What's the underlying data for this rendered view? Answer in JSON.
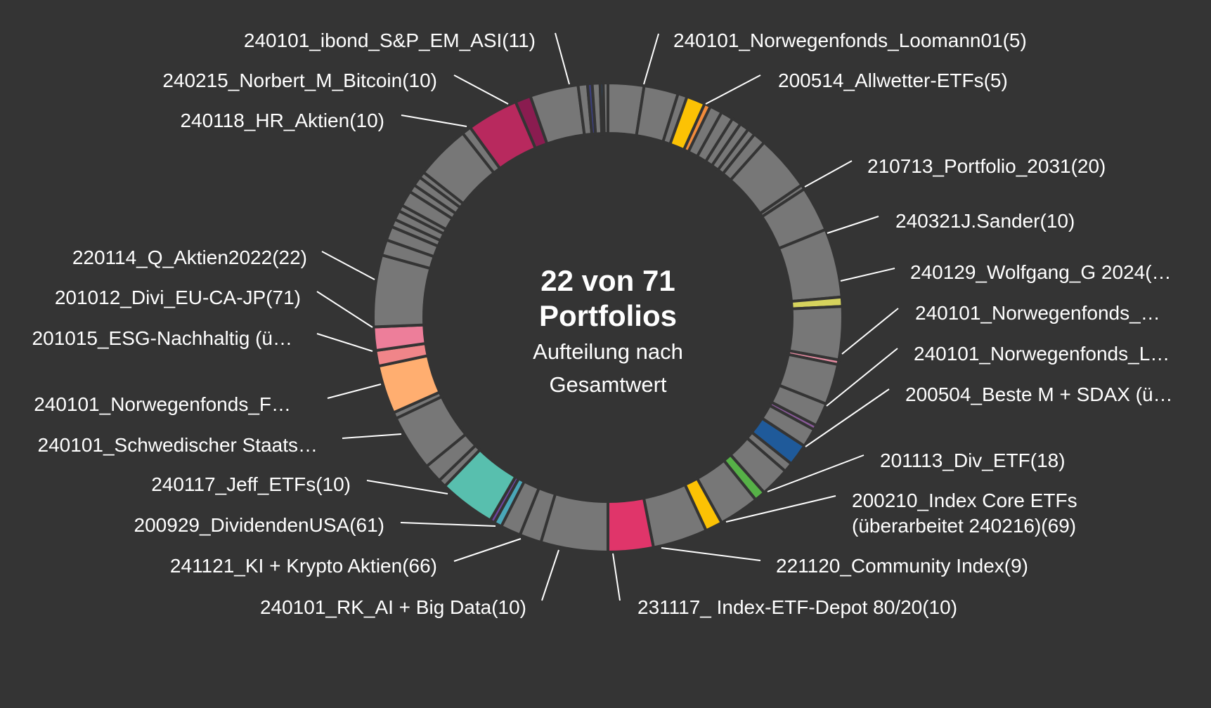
{
  "center": {
    "title_line1": "22 von 71",
    "title_line2": "Portfolios",
    "subtitle_line1": "Aufteilung nach",
    "subtitle_line2": "Gesamtwert"
  },
  "chart_data": {
    "type": "pie",
    "variant": "donut",
    "title": "22 von 71 Portfolios",
    "subtitle": "Aufteilung nach Gesamtwert",
    "other_color": "#777777",
    "labels": [
      {
        "text": "240101_ibond_S&P_EM_ASI(11)"
      },
      {
        "text": "240101_Norwegenfonds_Loomann01(5)"
      },
      {
        "text": "240215_Norbert_M_Bitcoin(10)"
      },
      {
        "text": "200514_Allwetter-ETFs(5)"
      },
      {
        "text": "240118_HR_Aktien(10)"
      },
      {
        "text": "210713_Portfolio_2031(20)"
      },
      {
        "text": "240321J.Sander(10)"
      },
      {
        "text": "220114_Q_Aktien2022(22)"
      },
      {
        "text": "240129_Wolfgang_G 2024(…"
      },
      {
        "text": "201012_Divi_EU-CA-JP(71)"
      },
      {
        "text": "240101_Norwegenfonds_…"
      },
      {
        "text": "201015_ESG-Nachhaltig (ü…"
      },
      {
        "text": "240101_Norwegenfonds_L…"
      },
      {
        "text": "200504_Beste M + SDAX (ü…"
      },
      {
        "text": "240101_Norwegenfonds_F…"
      },
      {
        "text": "240101_Schwedischer Staats…"
      },
      {
        "text": "201113_Div_ETF(18)"
      },
      {
        "text": "240117_Jeff_ETFs(10)"
      },
      {
        "text": "200210_Index Core ETFs",
        "text2": "(überarbeitet 240216)(69)"
      },
      {
        "text": "200929_DividendenUSA(61)"
      },
      {
        "text": "221120_Community Index(9)"
      },
      {
        "text": "241121_KI + Krypto Aktien(66)"
      },
      {
        "text": "240101_RK_AI + Big Data(10)"
      },
      {
        "text": "231117_ Index-ETF-Depot 80/20(10)"
      }
    ],
    "slices": [
      {
        "value": 2.3,
        "color": "#777777"
      },
      {
        "value": 2.2,
        "color": "#777777"
      },
      {
        "value": 0.6,
        "color": "#777777"
      },
      {
        "value": 1.2,
        "color": "#fcc204"
      },
      {
        "value": 0.4,
        "color": "#f28b3b"
      },
      {
        "value": 0.8,
        "color": "#777777"
      },
      {
        "value": 0.8,
        "color": "#777777"
      },
      {
        "value": 0.6,
        "color": "#777777"
      },
      {
        "value": 0.6,
        "color": "#777777"
      },
      {
        "value": 0.5,
        "color": "#777777"
      },
      {
        "value": 0.8,
        "color": "#777777"
      },
      {
        "value": 3.6,
        "color": "#777777"
      },
      {
        "value": 0.3,
        "color": "#777777"
      },
      {
        "value": 2.9,
        "color": "#777777"
      },
      {
        "value": 4.4,
        "color": "#777777"
      },
      {
        "value": 0.6,
        "color": "#d6d35d"
      },
      {
        "value": 3.4,
        "color": "#777777"
      },
      {
        "value": 0.3,
        "color": "#e48aa0"
      },
      {
        "value": 2.6,
        "color": "#777777"
      },
      {
        "value": 1.5,
        "color": "#777777"
      },
      {
        "value": 0.3,
        "color": "#8a5a9a"
      },
      {
        "value": 1.2,
        "color": "#777777"
      },
      {
        "value": 1.4,
        "color": "#1f5a9a"
      },
      {
        "value": 0.6,
        "color": "#777777"
      },
      {
        "value": 1.9,
        "color": "#777777"
      },
      {
        "value": 0.7,
        "color": "#56b147"
      },
      {
        "value": 2.6,
        "color": "#777777"
      },
      {
        "value": 1.1,
        "color": "#fcc204"
      },
      {
        "value": 3.5,
        "color": "#777777"
      },
      {
        "value": 2.9,
        "color": "#e0356a"
      },
      {
        "value": 4.3,
        "color": "#777777"
      },
      {
        "value": 1.4,
        "color": "#777777"
      },
      {
        "value": 1.3,
        "color": "#777777"
      },
      {
        "value": 0.5,
        "color": "#4aa7b8"
      },
      {
        "value": 0.3,
        "color": "#6e45a0"
      },
      {
        "value": 3.6,
        "color": "#58bfae"
      },
      {
        "value": 0.5,
        "color": "#777777"
      },
      {
        "value": 1.2,
        "color": "#777777"
      },
      {
        "value": 3.6,
        "color": "#777777"
      },
      {
        "value": 0.4,
        "color": "#777777"
      },
      {
        "value": 3.1,
        "color": "#ffae70"
      },
      {
        "value": 1.0,
        "color": "#f08589"
      },
      {
        "value": 1.5,
        "color": "#ed7e9a"
      },
      {
        "value": 4.6,
        "color": "#777777"
      },
      {
        "value": 1.0,
        "color": "#777777"
      },
      {
        "value": 0.9,
        "color": "#777777"
      },
      {
        "value": 0.5,
        "color": "#777777"
      },
      {
        "value": 0.6,
        "color": "#777777"
      },
      {
        "value": 0.4,
        "color": "#777777"
      },
      {
        "value": 1.0,
        "color": "#777777"
      },
      {
        "value": 0.5,
        "color": "#777777"
      },
      {
        "value": 0.6,
        "color": "#777777"
      },
      {
        "value": 0.4,
        "color": "#777777"
      },
      {
        "value": 3.5,
        "color": "#777777"
      },
      {
        "value": 0.6,
        "color": "#777777"
      },
      {
        "value": 3.3,
        "color": "#b8295e"
      },
      {
        "value": 1.0,
        "color": "#8a1c50"
      },
      {
        "value": 3.1,
        "color": "#777777"
      },
      {
        "value": 0.6,
        "color": "#777777"
      },
      {
        "value": 0.3,
        "color": "#3b3f7a"
      },
      {
        "value": 0.5,
        "color": "#777777"
      },
      {
        "value": 0.2,
        "color": "#1f5a9a"
      },
      {
        "value": 0.3,
        "color": "#777777"
      }
    ]
  }
}
